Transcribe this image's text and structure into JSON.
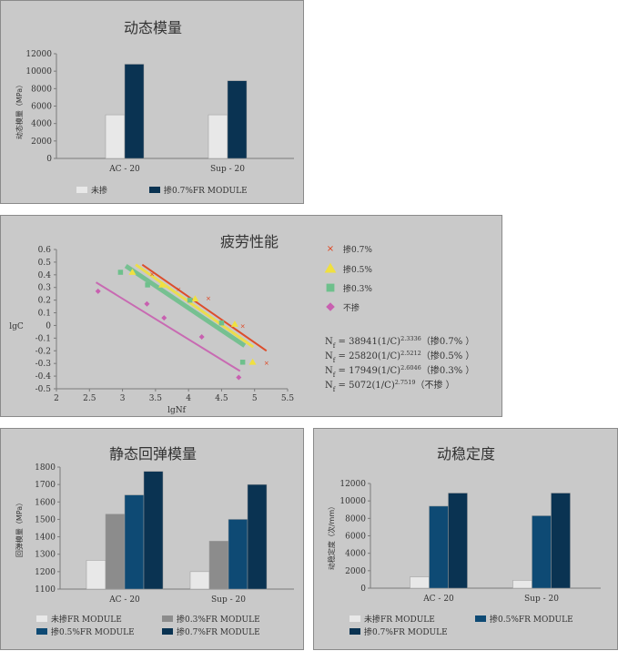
{
  "colors": {
    "untreated": "#e8e8e8",
    "pct03": "#8c8c8c",
    "pct05": "#0e4a74",
    "pct07": "#0a3352",
    "axis": "#7a7a7a",
    "fat07": "#e0401a",
    "fat05": "#f0e040",
    "fat03": "#6ec08c",
    "fat00": "#c860b0"
  },
  "charts": {
    "dynamic_modulus": {
      "title": "动态模量",
      "ylabel": "动态模量（MPa）",
      "chart_data": {
        "type": "bar",
        "categories": [
          "AC - 20",
          "Sup - 20"
        ],
        "ylim": [
          0,
          12000
        ],
        "yticks": [
          "0",
          "2000",
          "4000",
          "6000",
          "8000",
          "10000",
          "12000"
        ],
        "series": [
          {
            "name": "未掺",
            "values": [
              5000,
              5000
            ]
          },
          {
            "name": "掺0.7%FR MODULE",
            "values": [
              10800,
              8900
            ]
          }
        ],
        "legend": "bottom"
      }
    },
    "fatigue": {
      "title": "疲劳性能",
      "chart_data": {
        "type": "scatter",
        "xlabel": "lgNf",
        "ylabel": "lgC",
        "xlim": [
          2,
          5.5
        ],
        "ylim": [
          -0.5,
          0.6
        ],
        "xticks": [
          "2",
          "2.5",
          "3",
          "3.5",
          "4",
          "4.5",
          "5",
          "5.5"
        ],
        "yticks": [
          "-0.5",
          "-0.4",
          "-0.3",
          "-0.2",
          "-0.1",
          "0",
          "0.1",
          "0.2",
          "0.3",
          "0.4",
          "0.5",
          "0.6"
        ],
        "series": [
          {
            "name": "掺0.7%",
            "marker": "X",
            "points": [
              [
                3.45,
                0.41
              ],
              [
                3.85,
                0.29
              ],
              [
                4.3,
                0.22
              ],
              [
                4.82,
                0.0
              ],
              [
                5.18,
                -0.29
              ]
            ],
            "fit": [
              [
                3.3,
                0.48
              ],
              [
                5.18,
                -0.2
              ]
            ]
          },
          {
            "name": "掺0.5%",
            "marker": "▲",
            "points": [
              [
                3.15,
                0.42
              ],
              [
                3.6,
                0.32
              ],
              [
                4.1,
                0.21
              ],
              [
                4.7,
                0.01
              ],
              [
                4.97,
                -0.29
              ]
            ],
            "fit": [
              [
                3.2,
                0.48
              ],
              [
                4.98,
                -0.17
              ]
            ]
          },
          {
            "name": "掺0.3%",
            "marker": "■",
            "points": [
              [
                2.97,
                0.42
              ],
              [
                3.38,
                0.32
              ],
              [
                4.02,
                0.2
              ],
              [
                4.5,
                0.02
              ],
              [
                4.82,
                -0.29
              ]
            ],
            "fit": [
              [
                3.05,
                0.47
              ],
              [
                4.85,
                -0.16
              ]
            ]
          },
          {
            "name": "不掺",
            "marker": "◆",
            "points": [
              [
                2.63,
                0.27
              ],
              [
                3.37,
                0.17
              ],
              [
                3.63,
                0.06
              ],
              [
                4.2,
                -0.09
              ],
              [
                4.76,
                -0.41
              ]
            ],
            "fit": [
              [
                2.6,
                0.34
              ],
              [
                4.78,
                -0.36
              ]
            ]
          }
        ],
        "equations": [
          {
            "prefix": "N",
            "sub": "f",
            "body": " = 38941(1/C)",
            "exp": "2.3336",
            "suffix": "（掺0.7% ）"
          },
          {
            "prefix": "N",
            "sub": "f",
            "body": " = 25820(1/C)",
            "exp": "2.5212",
            "suffix": "（掺0.5% ）"
          },
          {
            "prefix": "N",
            "sub": "f",
            "body": " = 17949(1/C)",
            "exp": "2.6046",
            "suffix": "（掺0.3% ）"
          },
          {
            "prefix": "N",
            "sub": "f",
            "body": " = 5072(1/C)",
            "exp": "2.7519",
            "suffix": "（不掺 ）"
          }
        ]
      }
    },
    "static_modulus": {
      "title": "静态回弹模量",
      "ylabel": "回弹模量（MPa）",
      "chart_data": {
        "type": "bar",
        "categories": [
          "AC - 20",
          "Sup - 20"
        ],
        "ylim": [
          1100,
          1800
        ],
        "yticks": [
          "1100",
          "1200",
          "1300",
          "1400",
          "1500",
          "1600",
          "1700",
          "1800"
        ],
        "series": [
          {
            "name": "未掺FR MODULE",
            "values": [
              1265,
              1200
            ]
          },
          {
            "name": "掺0.3%FR MODULE",
            "values": [
              1530,
              1375
            ]
          },
          {
            "name": "掺0.5%FR MODULE",
            "values": [
              1640,
              1500
            ]
          },
          {
            "name": "掺0.7%FR MODULE",
            "values": [
              1775,
              1700
            ]
          }
        ],
        "legend": "bottom"
      }
    },
    "dynamic_stability": {
      "title": "动稳定度",
      "ylabel": "动稳定度（次/mm）",
      "chart_data": {
        "type": "bar",
        "categories": [
          "AC - 20",
          "Sup - 20"
        ],
        "ylim": [
          0,
          12000
        ],
        "yticks": [
          "0",
          "2000",
          "4000",
          "6000",
          "8000",
          "10000",
          "12000"
        ],
        "series": [
          {
            "name": "未掺FR MODULE",
            "values": [
              1300,
              900
            ]
          },
          {
            "name": "掺0.5%FR MODULE",
            "values": [
              9400,
              8300
            ]
          },
          {
            "name": "掺0.7%FR MODULE",
            "values": [
              10900,
              10900
            ]
          }
        ],
        "legend": "bottom"
      }
    }
  }
}
